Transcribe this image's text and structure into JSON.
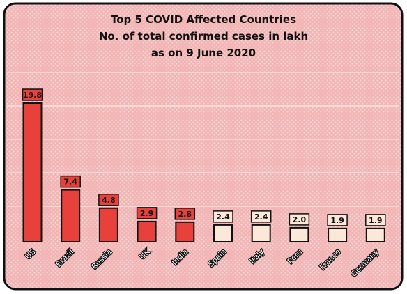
{
  "chart_data": {
    "type": "bar",
    "title_lines": [
      "Top 5 COVID Affected Countries",
      "No. of total confirmed cases in lakh",
      "as on 9 June 2020"
    ],
    "categories": [
      "US",
      "Brazil",
      "Russia",
      "UK",
      "India",
      "Spain",
      "Italy",
      "Peru",
      "France",
      "Germany"
    ],
    "values": [
      19.8,
      7.4,
      4.8,
      2.9,
      2.8,
      2.4,
      2.4,
      2.0,
      1.9,
      1.9
    ],
    "value_labels": [
      "19.8",
      "7.4",
      "4.8",
      "2.9",
      "2.8",
      "2.4",
      "2.4",
      "2.0",
      "1.9",
      "1.9"
    ],
    "highlight_count": 5,
    "ylim": [
      0,
      22
    ],
    "grid": true,
    "legend": "none",
    "colors": {
      "highlight_bar": "#e8403a",
      "other_bar": "#fbe8d8",
      "background": "#f2b4b4",
      "pattern": "#f7d7d7",
      "gridline": "#fdeaea",
      "border": "#111111"
    }
  }
}
